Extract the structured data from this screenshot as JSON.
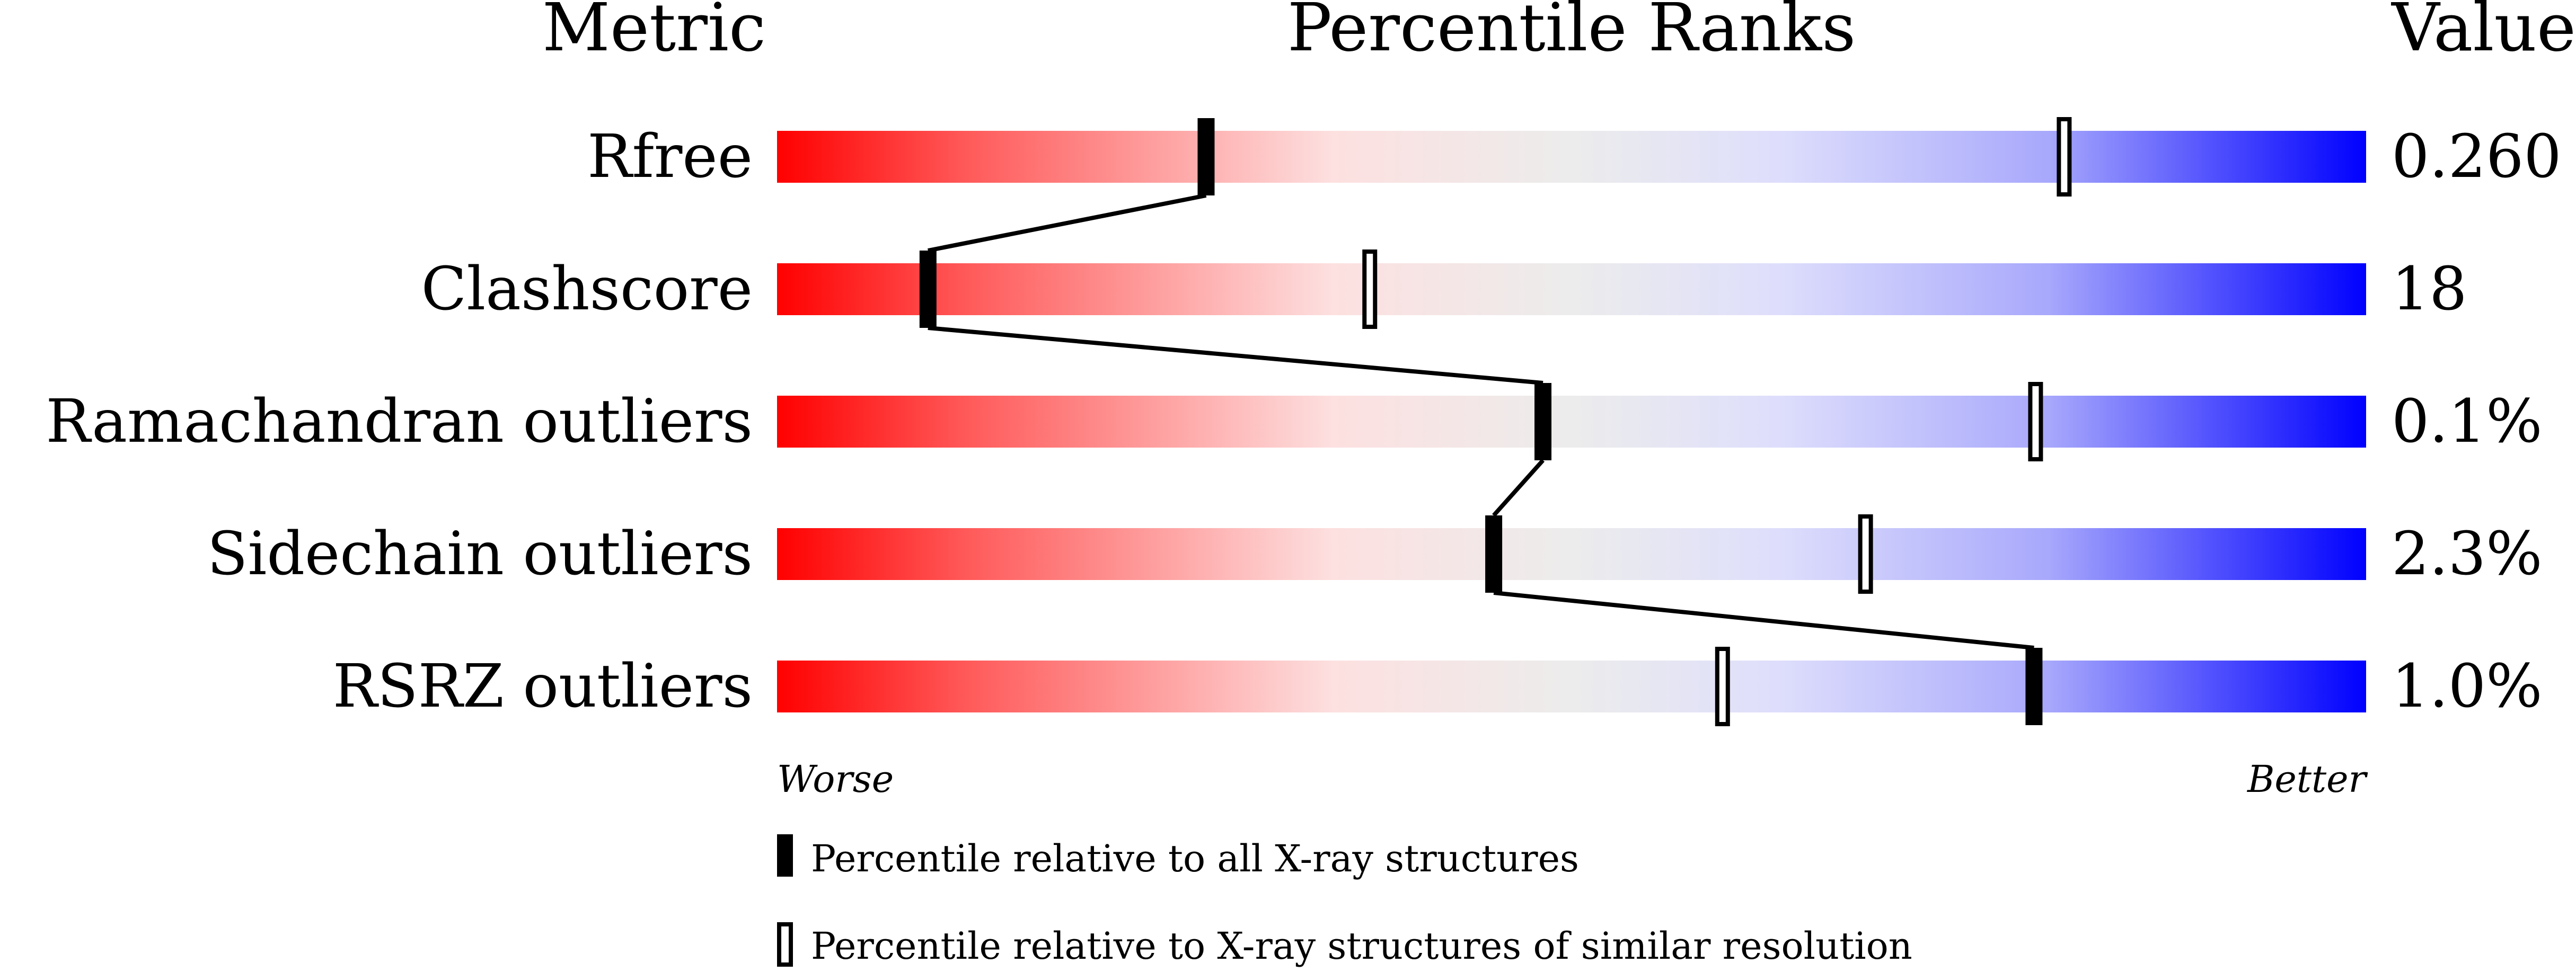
{
  "chart_data": {
    "type": "bar",
    "title": "Percentile Ranks",
    "column_headers": {
      "metric": "Metric",
      "ranks": "Percentile Ranks",
      "value": "Value"
    },
    "xlim": [
      0,
      100
    ],
    "axis_labels": {
      "left": "Worse",
      "right": "Better"
    },
    "gradient_colors": {
      "worse": "#ff0000",
      "middle": "#ececec",
      "better": "#0000ff"
    },
    "rows": [
      {
        "metric": "Rfree",
        "value": "0.260",
        "percentile_all": 27.0,
        "percentile_similar": 81.0
      },
      {
        "metric": "Clashscore",
        "value": "18",
        "percentile_all": 9.5,
        "percentile_similar": 37.3
      },
      {
        "metric": "Ramachandran outliers",
        "value": "0.1%",
        "percentile_all": 48.2,
        "percentile_similar": 79.2
      },
      {
        "metric": "Sidechain outliers",
        "value": "2.3%",
        "percentile_all": 45.1,
        "percentile_similar": 68.5
      },
      {
        "metric": "RSRZ outliers",
        "value": "1.0%",
        "percentile_all": 79.1,
        "percentile_similar": 59.5
      }
    ],
    "legend": [
      {
        "marker": "filled",
        "label": "Percentile relative to all X-ray structures"
      },
      {
        "marker": "open",
        "label": "Percentile relative to X-ray structures of similar resolution"
      }
    ]
  }
}
